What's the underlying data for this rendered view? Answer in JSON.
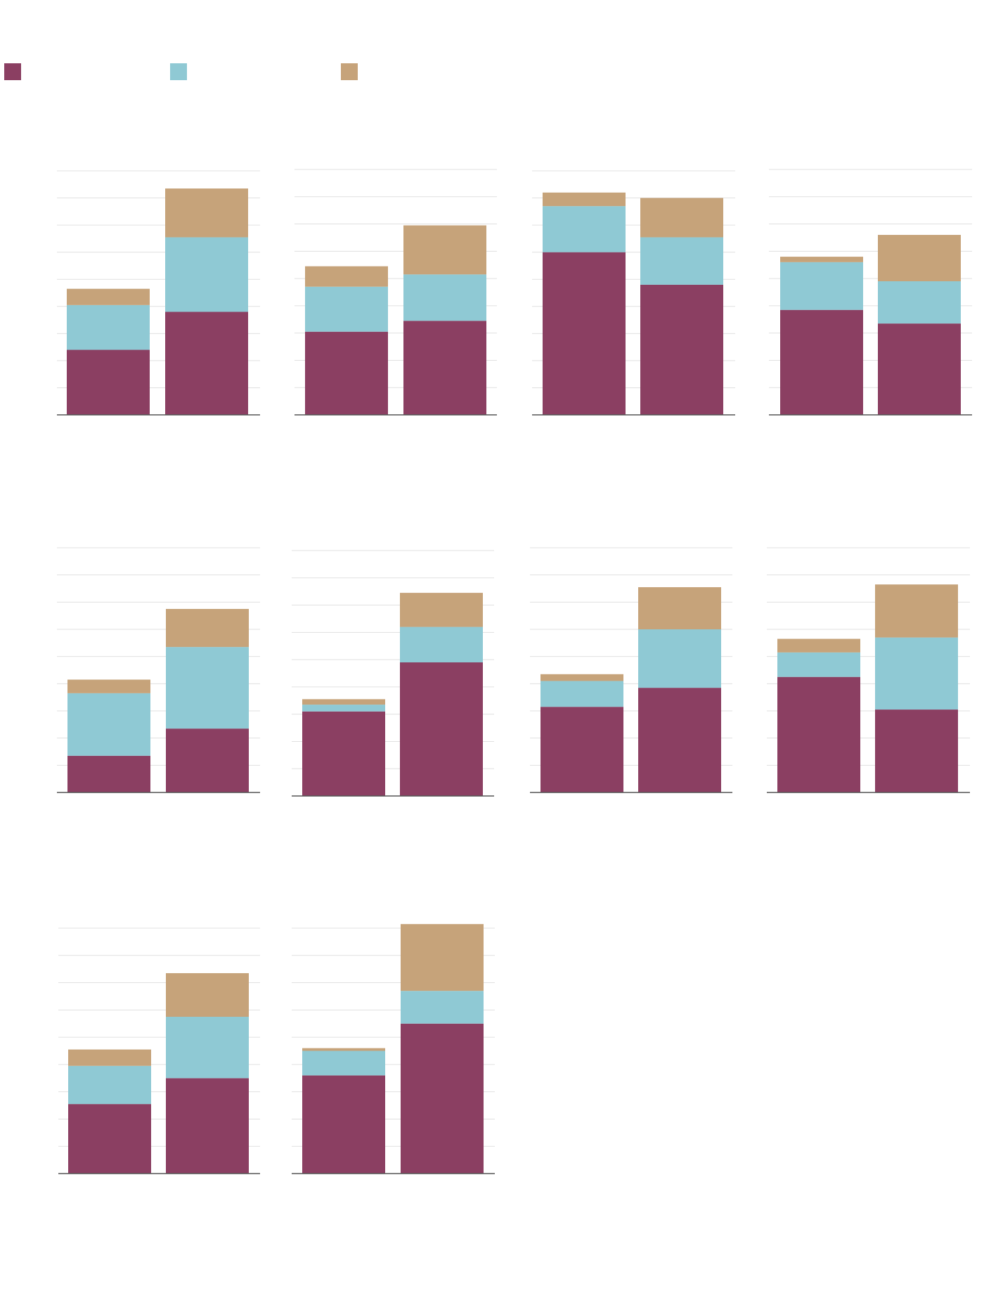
{
  "colors": {
    "series_1": "#8b3f62",
    "series_2": "#8fc9d4",
    "series_3": "#c6a37a",
    "gridline": "#e0e0e0",
    "axis": "#555555"
  },
  "legend": {
    "items": [
      {
        "label": "",
        "color": "#8b3f62"
      },
      {
        "label": "",
        "color": "#8fc9d4"
      },
      {
        "label": "",
        "color": "#c6a37a"
      }
    ]
  },
  "chart_data": [
    {
      "type": "bar",
      "stacked": true,
      "ylim": [
        0,
        9
      ],
      "grid": true,
      "series": [
        {
          "values": [
            2.4,
            3.8
          ]
        },
        {
          "values": [
            1.65,
            2.75
          ]
        },
        {
          "values": [
            0.6,
            1.8
          ]
        }
      ]
    },
    {
      "type": "bar",
      "stacked": true,
      "ylim": [
        0,
        9
      ],
      "grid": true,
      "series": [
        {
          "values": [
            3.05,
            3.45
          ]
        },
        {
          "values": [
            1.65,
            1.7
          ]
        },
        {
          "values": [
            0.75,
            1.8
          ]
        }
      ]
    },
    {
      "type": "bar",
      "stacked": true,
      "ylim": [
        0,
        9
      ],
      "grid": true,
      "series": [
        {
          "values": [
            6.0,
            4.8
          ]
        },
        {
          "values": [
            1.7,
            1.75
          ]
        },
        {
          "values": [
            0.5,
            1.45
          ]
        }
      ]
    },
    {
      "type": "bar",
      "stacked": true,
      "ylim": [
        0,
        9
      ],
      "grid": true,
      "series": [
        {
          "values": [
            3.85,
            3.35
          ]
        },
        {
          "values": [
            1.75,
            1.55
          ]
        },
        {
          "values": [
            0.2,
            1.7
          ]
        }
      ]
    },
    {
      "type": "bar",
      "stacked": true,
      "ylim": [
        0,
        9
      ],
      "grid": true,
      "series": [
        {
          "values": [
            1.35,
            2.35
          ]
        },
        {
          "values": [
            2.3,
            3.0
          ]
        },
        {
          "values": [
            0.5,
            1.4
          ]
        }
      ]
    },
    {
      "type": "bar",
      "stacked": true,
      "ylim": [
        0,
        9
      ],
      "grid": true,
      "series": [
        {
          "values": [
            3.1,
            4.9
          ]
        },
        {
          "values": [
            0.25,
            1.3
          ]
        },
        {
          "values": [
            0.2,
            1.25
          ]
        }
      ]
    },
    {
      "type": "bar",
      "stacked": true,
      "ylim": [
        0,
        9
      ],
      "grid": true,
      "series": [
        {
          "values": [
            3.15,
            3.85
          ]
        },
        {
          "values": [
            0.95,
            2.15
          ]
        },
        {
          "values": [
            0.25,
            1.55
          ]
        }
      ]
    },
    {
      "type": "bar",
      "stacked": true,
      "ylim": [
        0,
        9
      ],
      "grid": true,
      "series": [
        {
          "values": [
            4.25,
            3.05
          ]
        },
        {
          "values": [
            0.9,
            2.65
          ]
        },
        {
          "values": [
            0.5,
            1.95
          ]
        }
      ]
    },
    {
      "type": "bar",
      "stacked": true,
      "ylim": [
        0,
        9
      ],
      "grid": true,
      "series": [
        {
          "values": [
            2.55,
            3.5
          ]
        },
        {
          "values": [
            1.4,
            2.25
          ]
        },
        {
          "values": [
            0.6,
            1.6
          ]
        }
      ]
    },
    {
      "type": "bar",
      "stacked": true,
      "ylim": [
        0,
        9
      ],
      "grid": true,
      "series": [
        {
          "values": [
            3.6,
            5.5
          ]
        },
        {
          "values": [
            0.9,
            1.2
          ]
        },
        {
          "values": [
            0.1,
            2.45
          ]
        }
      ]
    }
  ]
}
